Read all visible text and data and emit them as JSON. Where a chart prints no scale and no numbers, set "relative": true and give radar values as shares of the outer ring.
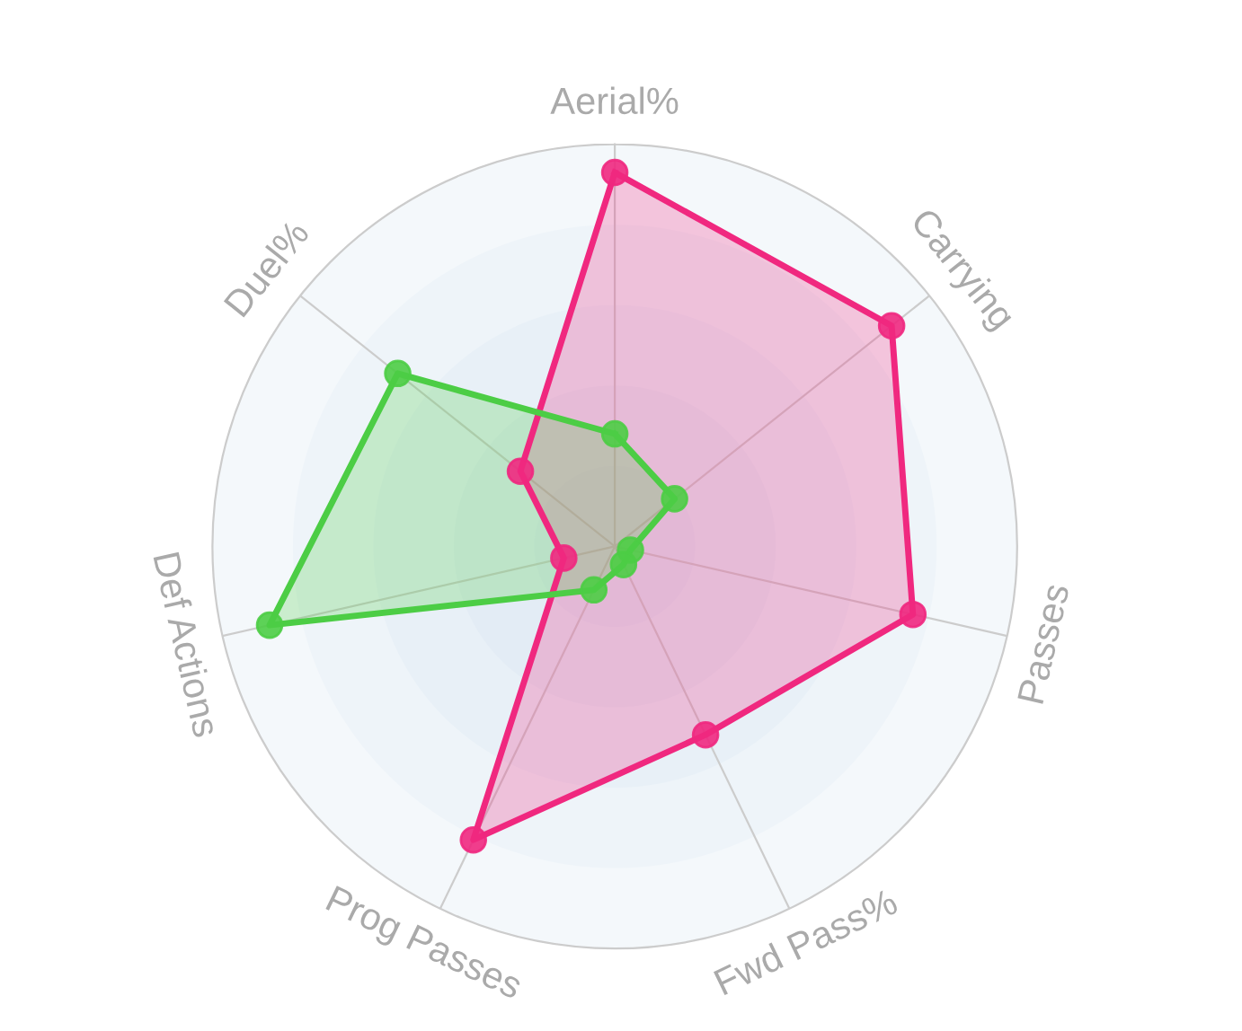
{
  "chart_data": {
    "type": "radar",
    "relative": true,
    "grid": true,
    "marker": "circle",
    "line_style": "solid",
    "categories": [
      "Aerial%",
      "Carrying",
      "Passes",
      "Fwd Pass%",
      "Prog Passes",
      "Def Actions",
      "Duel%"
    ],
    "series": [
      {
        "color": "#f0287f",
        "values": [
          0.93,
          0.88,
          0.76,
          0.52,
          0.81,
          0.13,
          0.3
        ]
      },
      {
        "color": "#4ccd45",
        "values": [
          0.28,
          0.19,
          0.04,
          0.05,
          0.12,
          0.88,
          0.69
        ]
      }
    ]
  }
}
